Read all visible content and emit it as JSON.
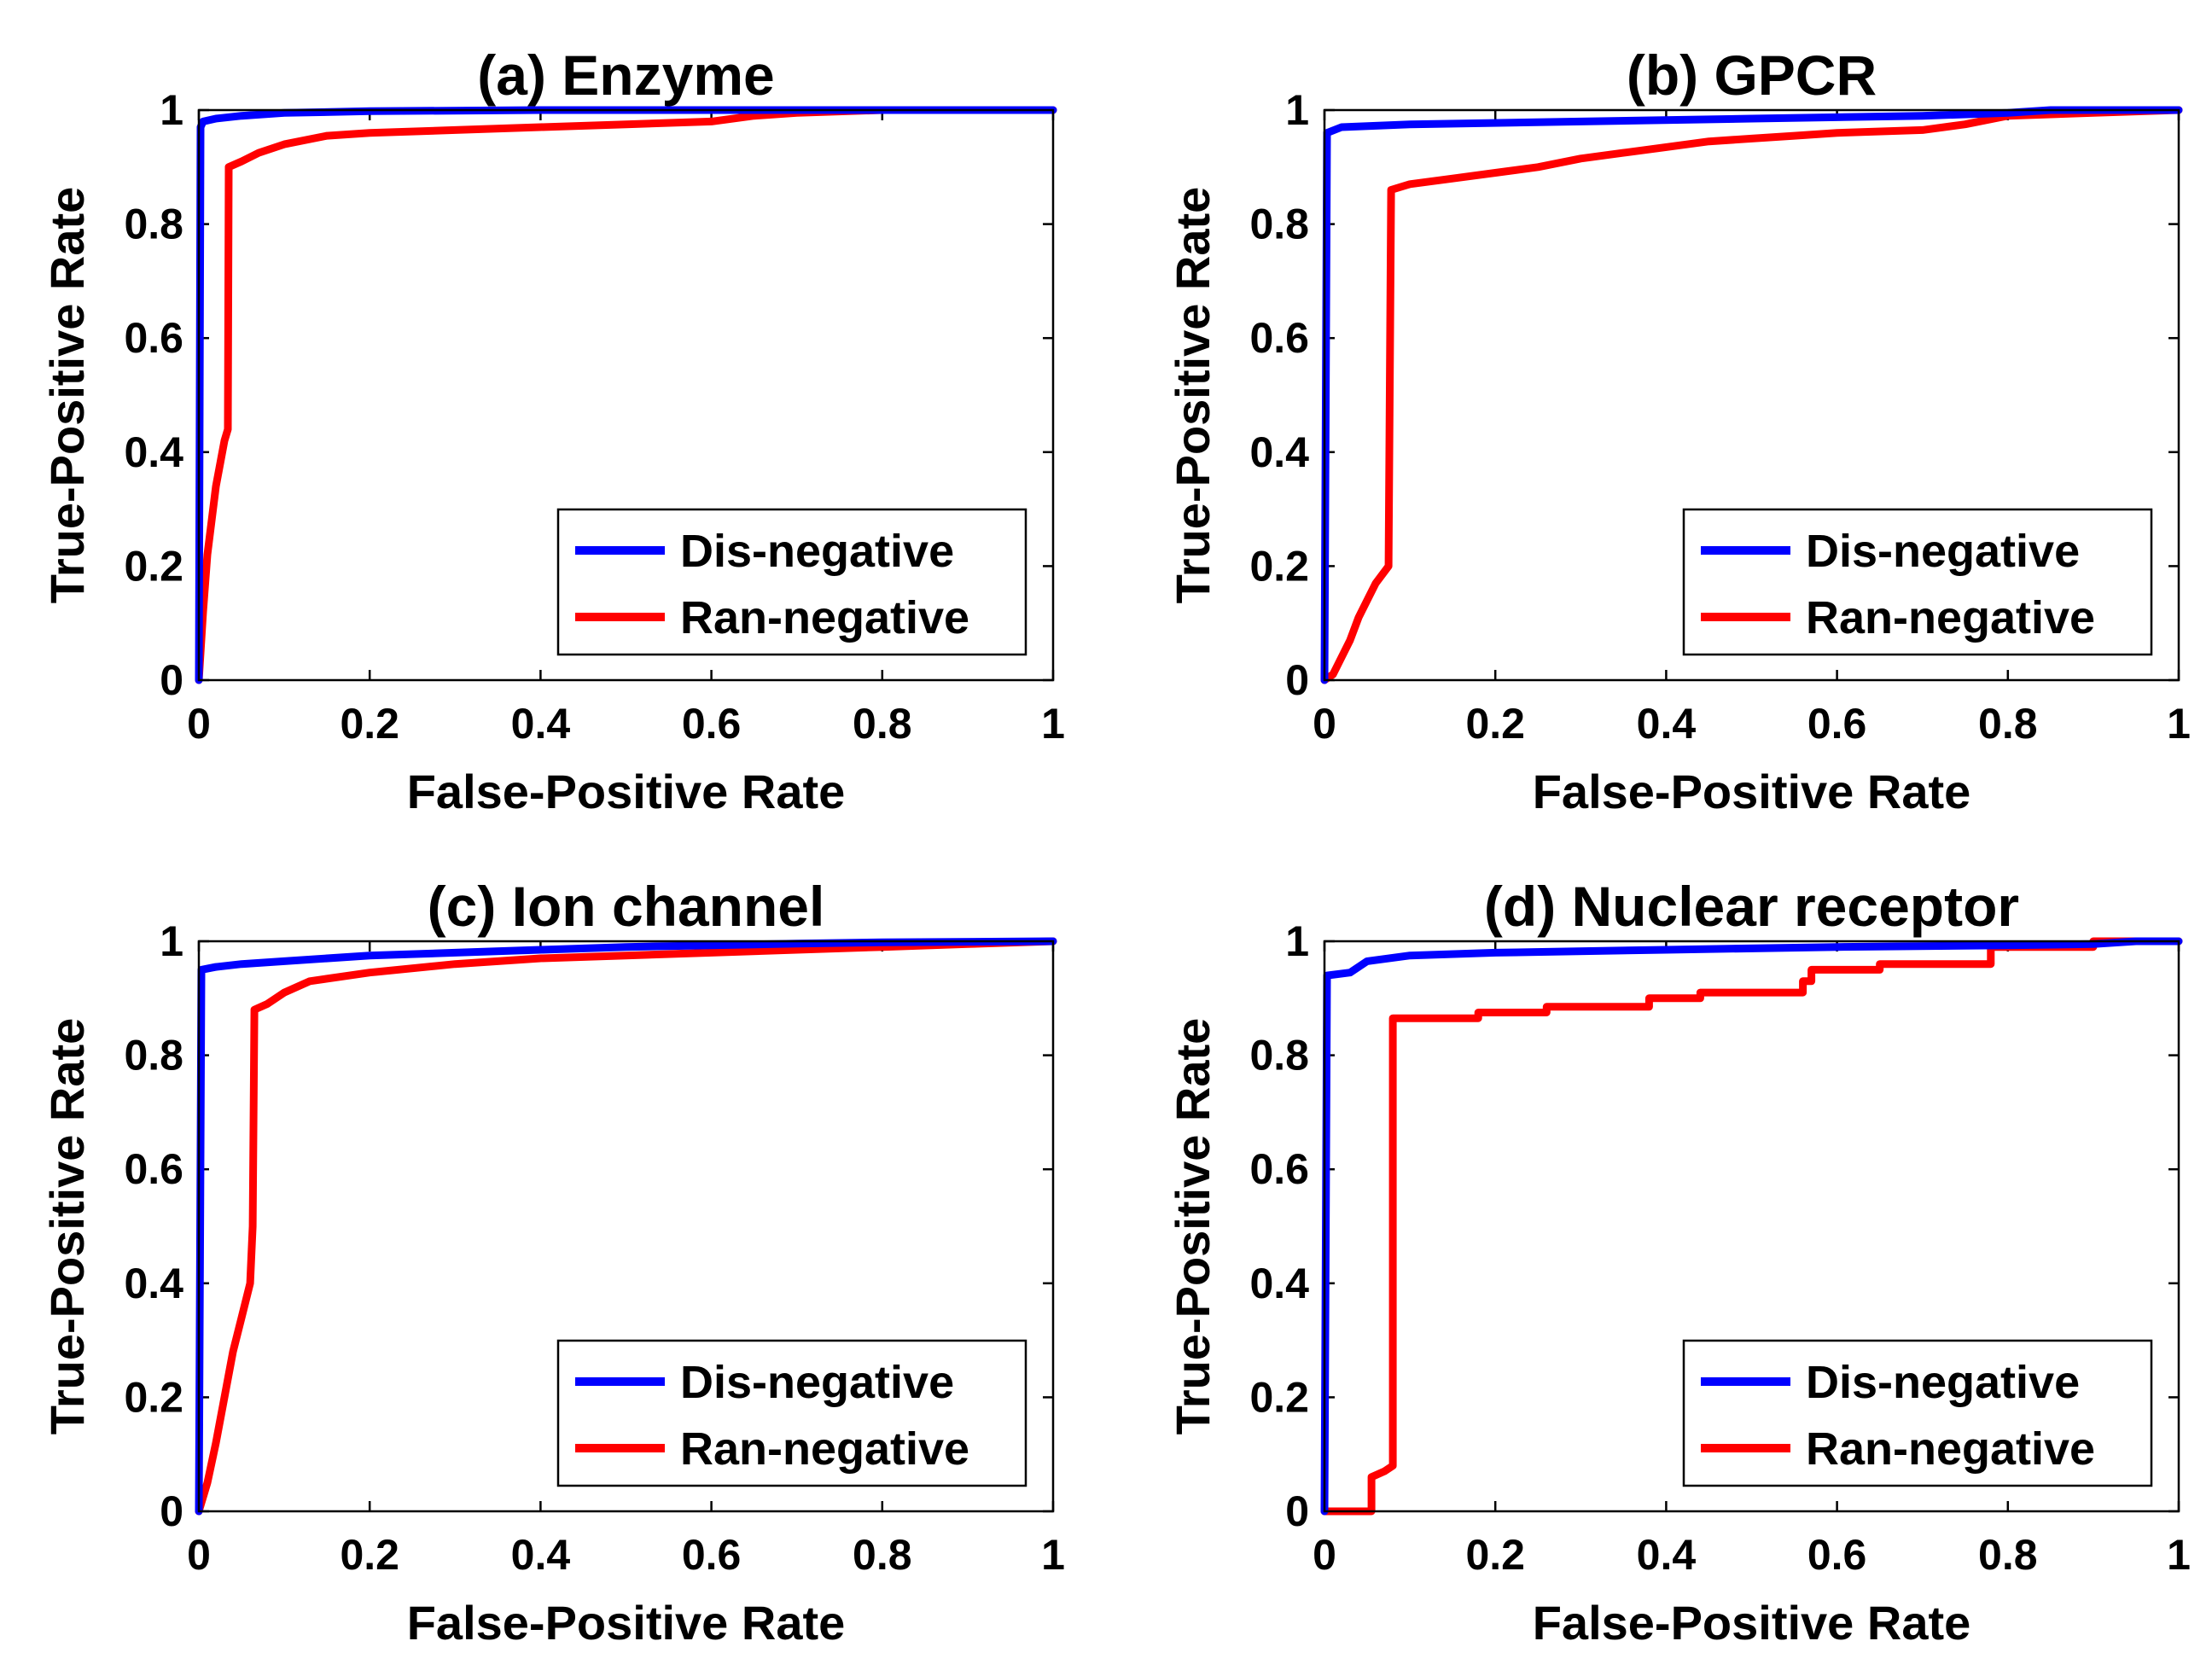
{
  "chart_data": [
    {
      "type": "line",
      "title": "(a) Enzyme",
      "xlabel": "False-Positive Rate",
      "ylabel": "True-Positive Rate",
      "xlim": [
        0,
        1
      ],
      "ylim": [
        0,
        1
      ],
      "xticks": [
        "0",
        "0.2",
        "0.4",
        "0.6",
        "0.8",
        "1"
      ],
      "yticks": [
        "0",
        "0.2",
        "0.4",
        "0.6",
        "0.8",
        "1"
      ],
      "legend_position": "bottom-right",
      "series": [
        {
          "name": "Dis-negative",
          "color": "#0000ff",
          "points": [
            [
              0,
              0
            ],
            [
              0.002,
              0.97
            ],
            [
              0.005,
              0.98
            ],
            [
              0.02,
              0.985
            ],
            [
              0.05,
              0.99
            ],
            [
              0.1,
              0.995
            ],
            [
              0.2,
              0.998
            ],
            [
              0.4,
              1.0
            ],
            [
              1.0,
              1.0
            ]
          ]
        },
        {
          "name": "Ran-negative",
          "color": "#ff0000",
          "points": [
            [
              0,
              0
            ],
            [
              0.005,
              0.12
            ],
            [
              0.01,
              0.22
            ],
            [
              0.015,
              0.28
            ],
            [
              0.02,
              0.34
            ],
            [
              0.03,
              0.42
            ],
            [
              0.034,
              0.44
            ],
            [
              0.035,
              0.9
            ],
            [
              0.05,
              0.91
            ],
            [
              0.07,
              0.925
            ],
            [
              0.1,
              0.94
            ],
            [
              0.15,
              0.955
            ],
            [
              0.2,
              0.96
            ],
            [
              0.3,
              0.965
            ],
            [
              0.4,
              0.97
            ],
            [
              0.5,
              0.975
            ],
            [
              0.6,
              0.98
            ],
            [
              0.65,
              0.99
            ],
            [
              0.7,
              0.995
            ],
            [
              0.8,
              1.0
            ],
            [
              1.0,
              1.0
            ]
          ]
        }
      ]
    },
    {
      "type": "line",
      "title": "(b) GPCR",
      "xlabel": "False-Positive Rate",
      "ylabel": "True-Positive Rate",
      "xlim": [
        0,
        1
      ],
      "ylim": [
        0,
        1
      ],
      "xticks": [
        "0",
        "0.2",
        "0.4",
        "0.6",
        "0.8",
        "1"
      ],
      "yticks": [
        "0",
        "0.2",
        "0.4",
        "0.6",
        "0.8",
        "1"
      ],
      "legend_position": "bottom-right",
      "series": [
        {
          "name": "Dis-negative",
          "color": "#0000ff",
          "points": [
            [
              0,
              0
            ],
            [
              0.003,
              0.96
            ],
            [
              0.02,
              0.97
            ],
            [
              0.1,
              0.975
            ],
            [
              0.3,
              0.98
            ],
            [
              0.5,
              0.985
            ],
            [
              0.7,
              0.99
            ],
            [
              0.8,
              0.995
            ],
            [
              0.85,
              1.0
            ],
            [
              1.0,
              1.0
            ]
          ]
        },
        {
          "name": "Ran-negative",
          "color": "#ff0000",
          "points": [
            [
              0,
              0
            ],
            [
              0.01,
              0.01
            ],
            [
              0.02,
              0.04
            ],
            [
              0.03,
              0.07
            ],
            [
              0.04,
              0.11
            ],
            [
              0.05,
              0.14
            ],
            [
              0.06,
              0.17
            ],
            [
              0.075,
              0.2
            ],
            [
              0.078,
              0.86
            ],
            [
              0.1,
              0.87
            ],
            [
              0.15,
              0.88
            ],
            [
              0.2,
              0.89
            ],
            [
              0.25,
              0.9
            ],
            [
              0.3,
              0.915
            ],
            [
              0.35,
              0.925
            ],
            [
              0.4,
              0.935
            ],
            [
              0.45,
              0.945
            ],
            [
              0.5,
              0.95
            ],
            [
              0.55,
              0.955
            ],
            [
              0.6,
              0.96
            ],
            [
              0.7,
              0.965
            ],
            [
              0.75,
              0.975
            ],
            [
              0.8,
              0.99
            ],
            [
              0.9,
              0.995
            ],
            [
              1.0,
              1.0
            ]
          ]
        }
      ]
    },
    {
      "type": "line",
      "title": "(c) Ion channel",
      "xlabel": "False-Positive Rate",
      "ylabel": "True-Positive Rate",
      "xlim": [
        0,
        1
      ],
      "ylim": [
        0,
        1
      ],
      "xticks": [
        "0",
        "0.2",
        "0.4",
        "0.6",
        "0.8",
        "1"
      ],
      "yticks": [
        "0",
        "0.2",
        "0.4",
        "0.6",
        "0.8",
        "1"
      ],
      "legend_position": "bottom-right",
      "series": [
        {
          "name": "Dis-negative",
          "color": "#0000ff",
          "points": [
            [
              0,
              0
            ],
            [
              0.003,
              0.95
            ],
            [
              0.02,
              0.955
            ],
            [
              0.05,
              0.96
            ],
            [
              0.1,
              0.965
            ],
            [
              0.2,
              0.975
            ],
            [
              0.3,
              0.98
            ],
            [
              0.4,
              0.985
            ],
            [
              0.5,
              0.99
            ],
            [
              0.6,
              0.993
            ],
            [
              0.7,
              0.996
            ],
            [
              0.8,
              0.998
            ],
            [
              1.0,
              1.0
            ]
          ]
        },
        {
          "name": "Ran-negative",
          "color": "#ff0000",
          "points": [
            [
              0,
              0
            ],
            [
              0.01,
              0.05
            ],
            [
              0.02,
              0.12
            ],
            [
              0.03,
              0.2
            ],
            [
              0.04,
              0.28
            ],
            [
              0.05,
              0.34
            ],
            [
              0.06,
              0.4
            ],
            [
              0.063,
              0.5
            ],
            [
              0.065,
              0.88
            ],
            [
              0.08,
              0.89
            ],
            [
              0.1,
              0.91
            ],
            [
              0.13,
              0.93
            ],
            [
              0.2,
              0.945
            ],
            [
              0.3,
              0.96
            ],
            [
              0.4,
              0.97
            ],
            [
              0.5,
              0.975
            ],
            [
              0.6,
              0.98
            ],
            [
              0.7,
              0.985
            ],
            [
              0.8,
              0.99
            ],
            [
              0.9,
              0.995
            ],
            [
              1.0,
              1.0
            ]
          ]
        }
      ]
    },
    {
      "type": "line",
      "title": "(d) Nuclear receptor",
      "xlabel": "False-Positive Rate",
      "ylabel": "True-Positive Rate",
      "xlim": [
        0,
        1
      ],
      "ylim": [
        0,
        1
      ],
      "xticks": [
        "0",
        "0.2",
        "0.4",
        "0.6",
        "0.8",
        "1"
      ],
      "yticks": [
        "0",
        "0.2",
        "0.4",
        "0.6",
        "0.8",
        "1"
      ],
      "legend_position": "bottom-right",
      "series": [
        {
          "name": "Dis-negative",
          "color": "#0000ff",
          "points": [
            [
              0,
              0
            ],
            [
              0.003,
              0.94
            ],
            [
              0.03,
              0.945
            ],
            [
              0.05,
              0.965
            ],
            [
              0.1,
              0.975
            ],
            [
              0.2,
              0.98
            ],
            [
              0.4,
              0.985
            ],
            [
              0.6,
              0.99
            ],
            [
              0.8,
              0.993
            ],
            [
              0.9,
              0.995
            ],
            [
              0.95,
              1.0
            ],
            [
              1.0,
              1.0
            ]
          ]
        },
        {
          "name": "Ran-negative",
          "color": "#ff0000",
          "points": [
            [
              0,
              0
            ],
            [
              0.055,
              0
            ],
            [
              0.055,
              0.06
            ],
            [
              0.07,
              0.07
            ],
            [
              0.08,
              0.08
            ],
            [
              0.08,
              0.865
            ],
            [
              0.18,
              0.865
            ],
            [
              0.18,
              0.875
            ],
            [
              0.26,
              0.875
            ],
            [
              0.26,
              0.885
            ],
            [
              0.38,
              0.885
            ],
            [
              0.38,
              0.9
            ],
            [
              0.44,
              0.9
            ],
            [
              0.44,
              0.91
            ],
            [
              0.56,
              0.91
            ],
            [
              0.56,
              0.93
            ],
            [
              0.57,
              0.93
            ],
            [
              0.57,
              0.95
            ],
            [
              0.65,
              0.95
            ],
            [
              0.65,
              0.96
            ],
            [
              0.78,
              0.96
            ],
            [
              0.78,
              0.99
            ],
            [
              0.9,
              0.99
            ],
            [
              0.9,
              1.0
            ],
            [
              1.0,
              1.0
            ]
          ]
        }
      ]
    }
  ]
}
